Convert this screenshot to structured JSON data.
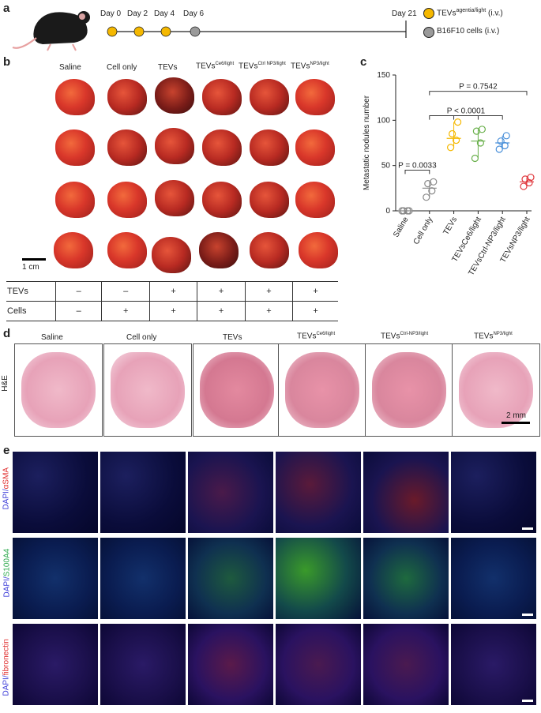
{
  "panel_labels": {
    "a": "a",
    "b": "b",
    "c": "c",
    "d": "d",
    "e": "e"
  },
  "timeline": {
    "days": [
      "Day 0",
      "Day 2",
      "Day 4",
      "Day 6",
      "Day 21"
    ],
    "legend_tevs": "TEVs",
    "legend_tevs_sup": "agentia/light",
    "legend_tevs_suffix": " (i.v.)",
    "legend_cells": "B16F10 cells (i.v.)",
    "colors": {
      "tevs": "#f5b800",
      "cells": "#9a9a9a"
    }
  },
  "groups": [
    {
      "base": "Saline",
      "sup": ""
    },
    {
      "base": "Cell only",
      "sup": ""
    },
    {
      "base": "TEVs",
      "sup": ""
    },
    {
      "base": "TEVs",
      "sup": "Ce6/light"
    },
    {
      "base": "TEVs",
      "sup": "Ctrl-NP3/light"
    },
    {
      "base": "TEVs",
      "sup": "NP3/light"
    }
  ],
  "panel_b": {
    "header_sups": [
      "",
      "",
      "",
      "Ce6/light",
      "Ctrl NP3/light",
      "NP3/light"
    ],
    "scale_bar": "1 cm",
    "table": {
      "rows": [
        {
          "label": "TEVs",
          "values": [
            "–",
            "–",
            "+",
            "+",
            "+",
            "+"
          ]
        },
        {
          "label": "Cells",
          "values": [
            "–",
            "+",
            "+",
            "+",
            "+",
            "+"
          ]
        }
      ]
    }
  },
  "chart_data": {
    "type": "scatter",
    "ylabel": "Metastatic nodules number",
    "ylim": [
      0,
      150
    ],
    "yticks": [
      0,
      50,
      100,
      150
    ],
    "categories": [
      "Saline",
      "Cell only",
      "TEVs",
      "TEVsCe6/light",
      "TEVsCtrl-NP3/light",
      "TEVsNP3/light"
    ],
    "series": [
      {
        "values": [
          0,
          0,
          0,
          0
        ]
      },
      {
        "values": [
          15,
          22,
          30,
          32
        ]
      },
      {
        "values": [
          70,
          78,
          85,
          98
        ]
      },
      {
        "values": [
          58,
          75,
          88,
          90
        ]
      },
      {
        "values": [
          68,
          72,
          77,
          83
        ]
      },
      {
        "values": [
          27,
          31,
          35,
          37
        ]
      }
    ],
    "means": [
      0,
      25,
      80,
      77,
      75,
      32
    ],
    "colors": [
      "#888888",
      "#888888",
      "#f5b800",
      "#6ab04c",
      "#4a90d9",
      "#e0393e"
    ],
    "annotations": [
      "P = 0.0033",
      "P < 0.0001",
      "P = 0.7542"
    ]
  },
  "panel_d": {
    "row_label": "H&E",
    "scale_bar": "2 mm"
  },
  "panel_e": {
    "row_labels": [
      {
        "a": "DAPI/",
        "b": "αSMA",
        "color": "#e03030"
      },
      {
        "a": "DAPI/",
        "b": "S100A4",
        "color": "#2aa84a"
      },
      {
        "a": "DAPI/",
        "b": "fibronectin",
        "color": "#e03030"
      }
    ]
  }
}
